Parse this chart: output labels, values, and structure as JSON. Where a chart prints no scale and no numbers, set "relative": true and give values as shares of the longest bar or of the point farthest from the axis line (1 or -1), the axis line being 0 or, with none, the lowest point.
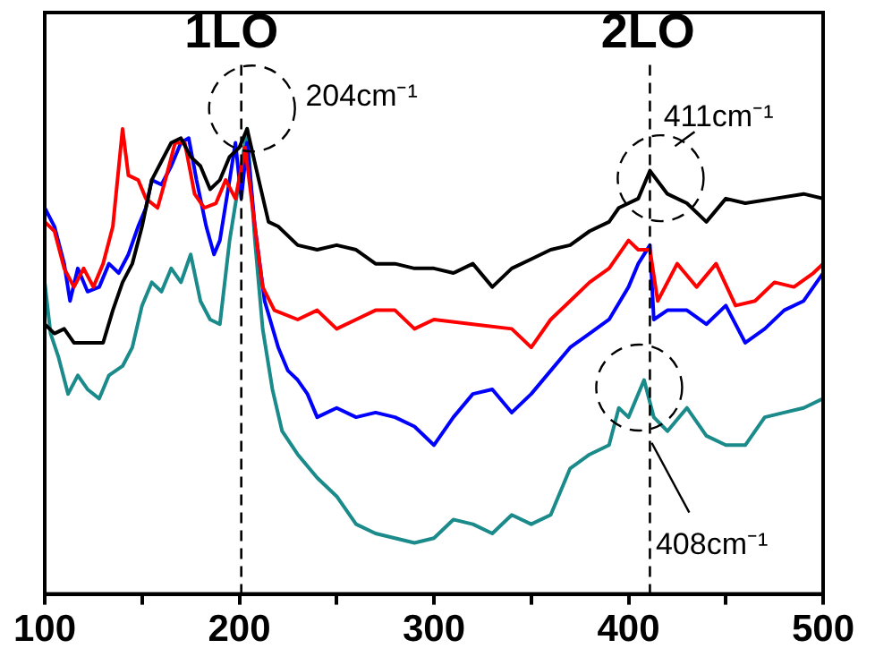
{
  "chart_data": {
    "type": "line",
    "relative": true,
    "marker": "none",
    "line_style": "solid",
    "xlim": [
      100,
      500
    ],
    "xticks": [
      100,
      {
        "value": 150,
        "label": null
      },
      200,
      {
        "value": 250,
        "label": null
      },
      300,
      {
        "value": 350,
        "label": null
      },
      400,
      {
        "value": 450,
        "label": null
      },
      500
    ],
    "annotations": [
      "1LO",
      "204cm⁻¹",
      "2LO",
      "411cm⁻¹",
      "408cm⁻¹"
    ],
    "ref_lines": [
      {
        "axis": "x",
        "value": 201,
        "color": "#000000",
        "line_style": "dashed"
      },
      {
        "axis": "x",
        "value": 411,
        "color": "#000000",
        "line_style": "dashed"
      }
    ],
    "series": [
      {
        "color": "#000000",
        "x": [
          100,
          105,
          110,
          115,
          125,
          130,
          135,
          140,
          145,
          150,
          155,
          160,
          165,
          170,
          175,
          180,
          185,
          190,
          195,
          200,
          204,
          210,
          215,
          220,
          230,
          240,
          250,
          260,
          270,
          280,
          290,
          300,
          310,
          320,
          330,
          340,
          350,
          360,
          370,
          380,
          390,
          395,
          405,
          411,
          420,
          430,
          440,
          450,
          460,
          475,
          490,
          500
        ],
        "values": [
          0.58,
          0.56,
          0.57,
          0.54,
          0.54,
          0.54,
          0.61,
          0.67,
          0.71,
          0.79,
          0.89,
          0.93,
          0.97,
          0.98,
          0.94,
          0.92,
          0.87,
          0.89,
          0.94,
          0.96,
          1.0,
          0.89,
          0.8,
          0.79,
          0.75,
          0.74,
          0.75,
          0.74,
          0.71,
          0.71,
          0.7,
          0.7,
          0.69,
          0.71,
          0.66,
          0.7,
          0.72,
          0.74,
          0.75,
          0.78,
          0.8,
          0.83,
          0.85,
          0.91,
          0.86,
          0.84,
          0.8,
          0.85,
          0.84,
          0.85,
          0.86,
          0.85
        ]
      },
      {
        "color": "#ff0000",
        "x": [
          100,
          105,
          110,
          115,
          120,
          125,
          130,
          135,
          140,
          143,
          148,
          152,
          158,
          162,
          167,
          172,
          177,
          182,
          188,
          193,
          198,
          203,
          208,
          212,
          218,
          230,
          240,
          250,
          260,
          270,
          280,
          290,
          300,
          320,
          340,
          350,
          360,
          370,
          380,
          390,
          400,
          405,
          411,
          415,
          425,
          435,
          445,
          455,
          465,
          475,
          485,
          495,
          500
        ],
        "values": [
          0.8,
          0.78,
          0.7,
          0.66,
          0.7,
          0.66,
          0.71,
          0.79,
          1.0,
          0.9,
          0.89,
          0.85,
          0.83,
          0.89,
          0.97,
          0.97,
          0.86,
          0.83,
          0.84,
          0.89,
          0.85,
          0.96,
          0.79,
          0.66,
          0.61,
          0.59,
          0.61,
          0.57,
          0.59,
          0.61,
          0.61,
          0.57,
          0.59,
          0.58,
          0.57,
          0.53,
          0.59,
          0.63,
          0.67,
          0.7,
          0.76,
          0.74,
          0.74,
          0.63,
          0.71,
          0.66,
          0.71,
          0.62,
          0.63,
          0.67,
          0.66,
          0.69,
          0.71
        ]
      },
      {
        "color": "#0000ff",
        "x": [
          100,
          105,
          110,
          113,
          117,
          122,
          128,
          133,
          138,
          143,
          148,
          152,
          155,
          160,
          165,
          170,
          174,
          178,
          183,
          187,
          190,
          195,
          198,
          201,
          204,
          208,
          213,
          220,
          225,
          230,
          235,
          240,
          250,
          260,
          270,
          280,
          290,
          300,
          310,
          320,
          330,
          340,
          350,
          360,
          370,
          380,
          390,
          400,
          405,
          411,
          413,
          420,
          430,
          440,
          450,
          460,
          470,
          480,
          490,
          500
        ],
        "values": [
          0.83,
          0.79,
          0.71,
          0.63,
          0.7,
          0.65,
          0.66,
          0.71,
          0.69,
          0.73,
          0.79,
          0.83,
          0.89,
          0.88,
          0.92,
          0.97,
          0.98,
          0.89,
          0.79,
          0.73,
          0.76,
          0.89,
          0.97,
          0.85,
          0.97,
          0.79,
          0.63,
          0.53,
          0.48,
          0.46,
          0.43,
          0.38,
          0.4,
          0.38,
          0.39,
          0.38,
          0.36,
          0.32,
          0.38,
          0.43,
          0.44,
          0.39,
          0.43,
          0.48,
          0.53,
          0.56,
          0.59,
          0.66,
          0.71,
          0.75,
          0.59,
          0.61,
          0.61,
          0.58,
          0.62,
          0.54,
          0.57,
          0.61,
          0.63,
          0.69
        ]
      },
      {
        "color": "#1a8a8a",
        "x": [
          100,
          103,
          107,
          112,
          117,
          122,
          128,
          133,
          140,
          145,
          150,
          155,
          160,
          165,
          170,
          175,
          180,
          185,
          190,
          195,
          200,
          204,
          208,
          212,
          217,
          222,
          230,
          240,
          250,
          260,
          270,
          280,
          290,
          300,
          310,
          320,
          330,
          340,
          350,
          360,
          370,
          380,
          390,
          395,
          400,
          408,
          413,
          420,
          430,
          440,
          450,
          460,
          470,
          480,
          490,
          500
        ],
        "values": [
          0.67,
          0.56,
          0.51,
          0.43,
          0.47,
          0.44,
          0.42,
          0.47,
          0.49,
          0.53,
          0.62,
          0.67,
          0.65,
          0.7,
          0.67,
          0.73,
          0.63,
          0.59,
          0.58,
          0.76,
          0.89,
          1.0,
          0.76,
          0.57,
          0.44,
          0.35,
          0.3,
          0.25,
          0.21,
          0.15,
          0.13,
          0.12,
          0.11,
          0.12,
          0.16,
          0.15,
          0.13,
          0.17,
          0.15,
          0.17,
          0.27,
          0.3,
          0.32,
          0.4,
          0.38,
          0.46,
          0.38,
          0.35,
          0.4,
          0.34,
          0.32,
          0.32,
          0.38,
          0.39,
          0.4,
          0.42
        ]
      }
    ]
  }
}
